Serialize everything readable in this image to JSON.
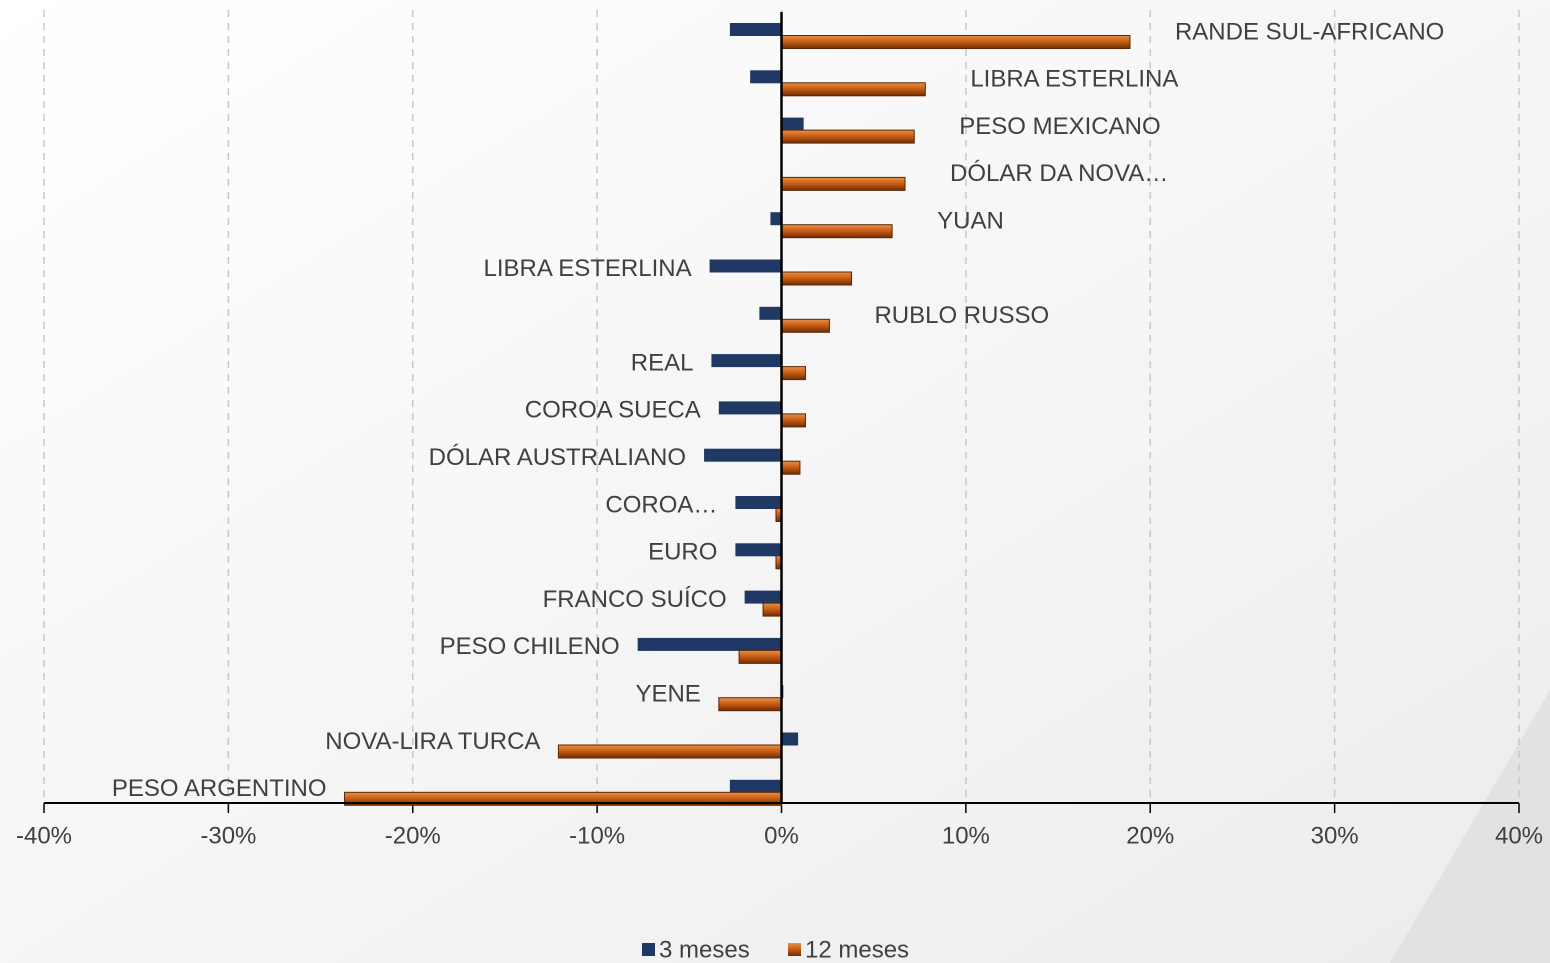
{
  "chart_data": {
    "type": "hbar",
    "categories": [
      "RANDE SUL-AFRICANO",
      "LIBRA ESTERLINA",
      "PESO MEXICANO",
      "DÓLAR DA NOVA…",
      "YUAN",
      "LIBRA ESTERLINA",
      "RUBLO RUSSO",
      "REAL",
      "COROA SUECA",
      "DÓLAR AUSTRALIANO",
      "COROA…",
      "EURO",
      "FRANCO SUÍCO",
      "PESO CHILENO",
      "YENE",
      "NOVA-LIRA TURCA",
      "PESO ARGENTINO"
    ],
    "series": [
      {
        "name": "3 meses",
        "color": "#1f3864",
        "values": [
          -2.8,
          -1.7,
          1.2,
          0,
          -0.6,
          -3.9,
          -1.2,
          -3.8,
          -3.4,
          -4.2,
          -2.5,
          -2.5,
          -2.0,
          -7.8,
          0.1,
          0.9,
          -2.8
        ]
      },
      {
        "name": "12 meses",
        "color": "#c55a11",
        "values": [
          18.9,
          7.8,
          7.2,
          6.7,
          6.0,
          3.8,
          2.6,
          1.3,
          1.3,
          1.0,
          -0.3,
          -0.3,
          -1.0,
          -2.3,
          -3.4,
          -12.1,
          -23.7
        ]
      }
    ],
    "xlim": [
      -40,
      40
    ],
    "xticks": [
      {
        "value": -40,
        "label": "-40%"
      },
      {
        "value": -30,
        "label": "-30%"
      },
      {
        "value": -20,
        "label": "-20%"
      },
      {
        "value": -10,
        "label": "-10%"
      },
      {
        "value": 0,
        "label": "0%"
      },
      {
        "value": 10,
        "label": "10%"
      },
      {
        "value": 20,
        "label": "20%"
      },
      {
        "value": 30,
        "label": "30%"
      },
      {
        "value": 40,
        "label": "40%"
      }
    ],
    "grid": true,
    "legend": "bottom"
  }
}
